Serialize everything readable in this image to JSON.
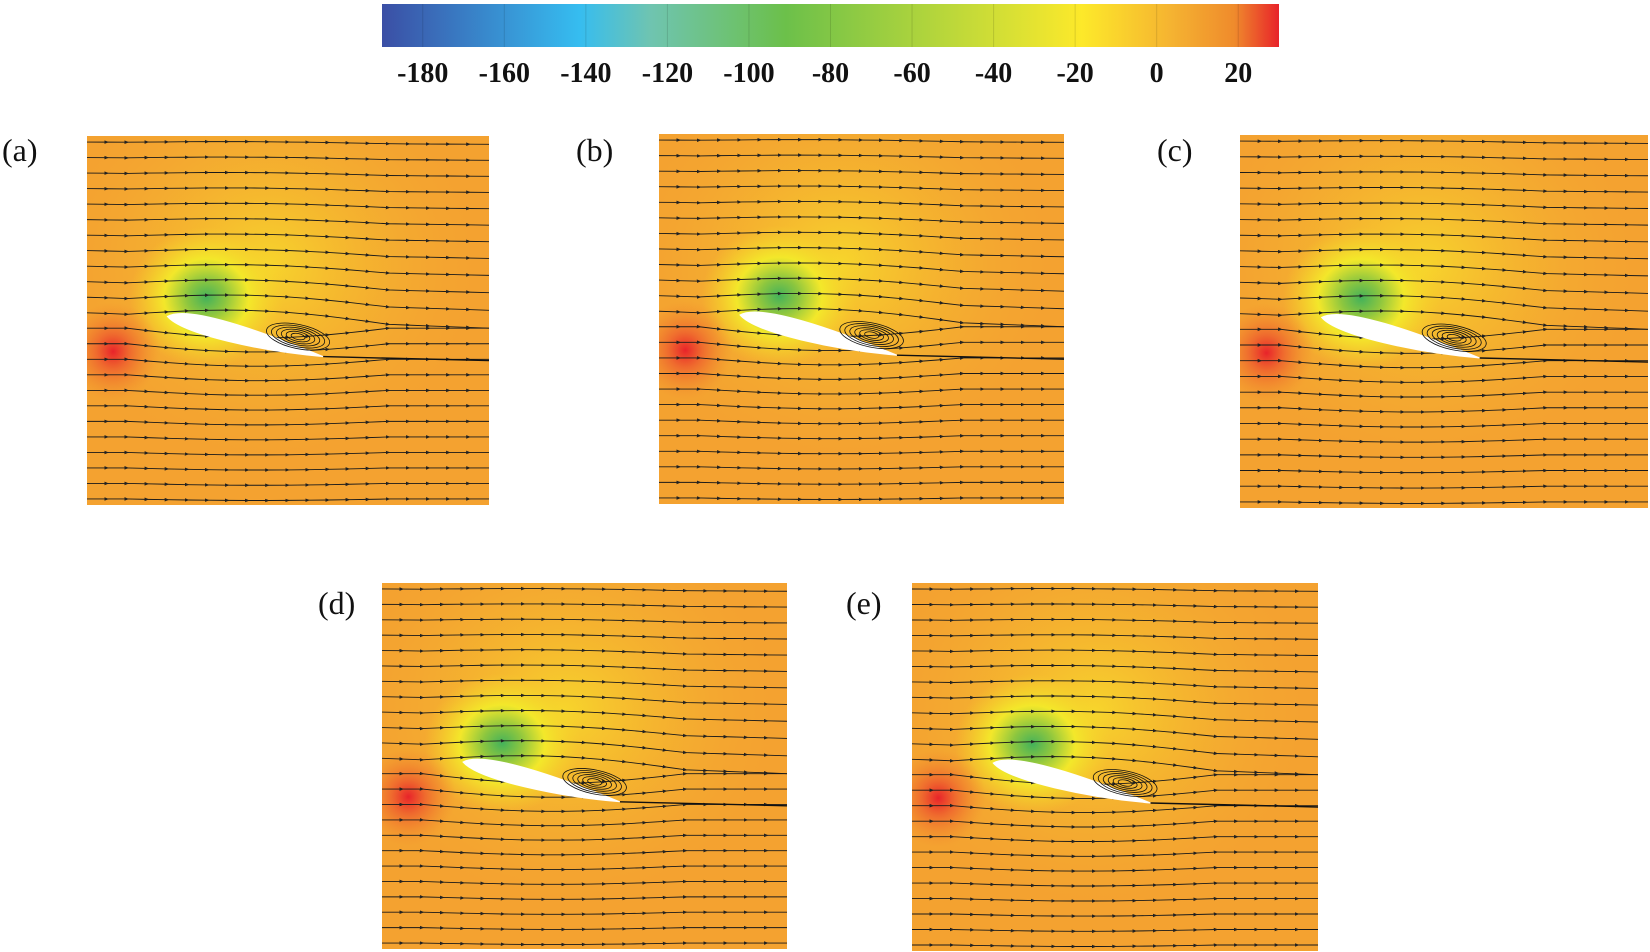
{
  "figure": {
    "colorbar": {
      "tick_labels": [
        "-180",
        "-160",
        "-140",
        "-120",
        "-100",
        "-80",
        "-60",
        "-40",
        "-20",
        "0",
        "20"
      ],
      "range": [
        -190,
        30
      ],
      "colors": [
        "#3b4fa5",
        "#36bdf0",
        "#6fc4b0",
        "#6cc04a",
        "#d8e034",
        "#fde92a",
        "#f5b331",
        "#ef8b2c",
        "#e8232a"
      ]
    },
    "panels": [
      {
        "label": "(a)"
      },
      {
        "label": "(b)"
      },
      {
        "label": "(c)"
      },
      {
        "label": "(d)"
      },
      {
        "label": "(e)"
      }
    ]
  }
}
